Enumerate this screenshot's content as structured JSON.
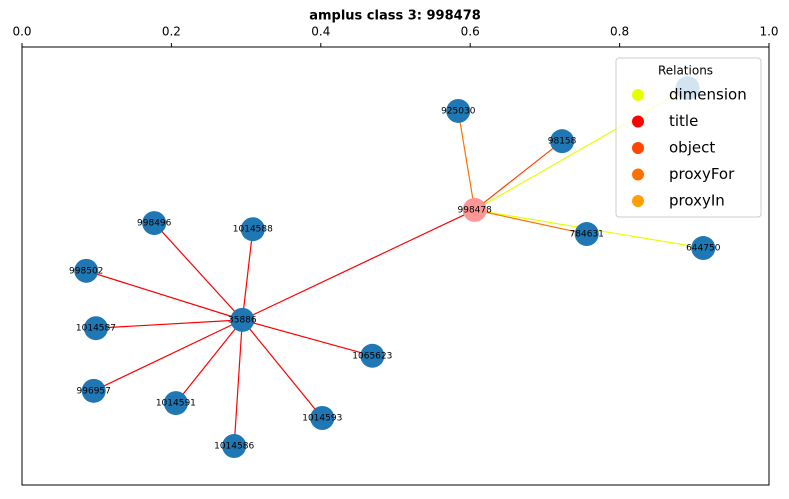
{
  "chart_data": {
    "type": "network",
    "title": "amplus class 3: 998478",
    "xlim": [
      0,
      1
    ],
    "ylim": [
      0,
      1
    ],
    "xticks": [
      {
        "value": 0,
        "label": "0.0"
      },
      {
        "value": 0.2,
        "label": "0.2"
      },
      {
        "value": 0.4,
        "label": "0.4"
      },
      {
        "value": 0.6,
        "label": "0.6"
      },
      {
        "value": 0.8,
        "label": "0.8"
      },
      {
        "value": 1,
        "label": "1.0"
      }
    ],
    "legend_title": "Relations",
    "legend_position": "upper right",
    "relations": [
      {
        "name": "dimension",
        "color": "#e6ff00"
      },
      {
        "name": "title",
        "color": "#ff0000"
      },
      {
        "name": "object",
        "color": "#ff4500"
      },
      {
        "name": "proxyFor",
        "color": "#ff7000"
      },
      {
        "name": "proxyIn",
        "color": "#ffa000"
      }
    ],
    "nodes": [
      {
        "label": "998478",
        "x": 0.606,
        "y": 0.628,
        "color": "#ff9696"
      },
      {
        "label": "925030",
        "x": 0.584,
        "y": 0.854,
        "color": "#1f77b4"
      },
      {
        "label": "98158",
        "x": 0.723,
        "y": 0.785,
        "color": "#1f77b4"
      },
      {
        "label": "784631",
        "x": 0.756,
        "y": 0.573,
        "color": "#1f77b4"
      },
      {
        "label": "644750",
        "x": 0.912,
        "y": 0.541,
        "color": "#1f77b4"
      },
      {
        "label": null,
        "x": 0.891,
        "y": 0.906,
        "color": "#1f77b4"
      },
      {
        "label": "35886",
        "x": 0.295,
        "y": 0.377,
        "color": "#1f77b4"
      },
      {
        "label": "998496",
        "x": 0.177,
        "y": 0.598,
        "color": "#1f77b4"
      },
      {
        "label": "1014588",
        "x": 0.309,
        "y": 0.584,
        "color": "#1f77b4"
      },
      {
        "label": "998502",
        "x": 0.086,
        "y": 0.489,
        "color": "#1f77b4"
      },
      {
        "label": "1014587",
        "x": 0.099,
        "y": 0.358,
        "color": "#1f77b4"
      },
      {
        "label": "996957",
        "x": 0.096,
        "y": 0.215,
        "color": "#1f77b4"
      },
      {
        "label": "1014591",
        "x": 0.206,
        "y": 0.187,
        "color": "#1f77b4"
      },
      {
        "label": "1014586",
        "x": 0.284,
        "y": 0.089,
        "color": "#1f77b4"
      },
      {
        "label": "1014593",
        "x": 0.402,
        "y": 0.153,
        "color": "#1f77b4"
      },
      {
        "label": "1065623",
        "x": 0.469,
        "y": 0.295,
        "color": "#1f77b4"
      }
    ],
    "edges": [
      {
        "source": 0,
        "target": 5,
        "relation": "dimension"
      },
      {
        "source": 0,
        "target": 4,
        "relation": "dimension"
      },
      {
        "source": 0,
        "target": 3,
        "relation": "proxyFor"
      },
      {
        "source": 0,
        "target": 1,
        "relation": "proxyFor"
      },
      {
        "source": 0,
        "target": 2,
        "relation": "object"
      },
      {
        "source": 0,
        "target": 6,
        "relation": "title"
      },
      {
        "source": 6,
        "target": 7,
        "relation": "title"
      },
      {
        "source": 6,
        "target": 8,
        "relation": "title"
      },
      {
        "source": 6,
        "target": 9,
        "relation": "title"
      },
      {
        "source": 6,
        "target": 10,
        "relation": "title"
      },
      {
        "source": 6,
        "target": 11,
        "relation": "title"
      },
      {
        "source": 6,
        "target": 12,
        "relation": "title"
      },
      {
        "source": 6,
        "target": 13,
        "relation": "title"
      },
      {
        "source": 6,
        "target": 14,
        "relation": "title"
      },
      {
        "source": 6,
        "target": 15,
        "relation": "title"
      }
    ]
  }
}
